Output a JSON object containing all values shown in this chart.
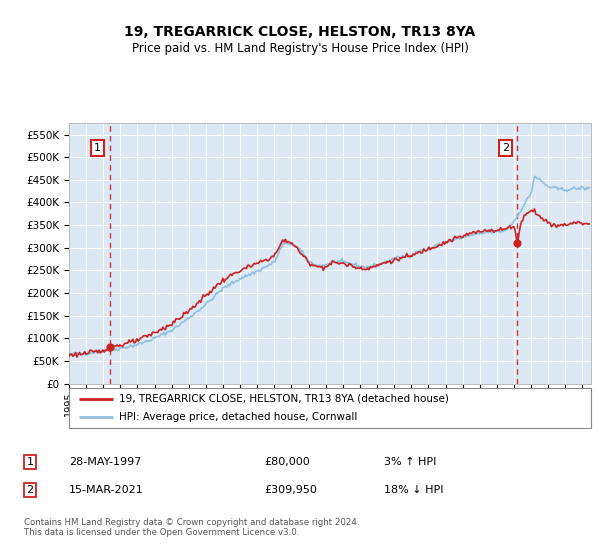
{
  "title": "19, TREGARRICK CLOSE, HELSTON, TR13 8YA",
  "subtitle": "Price paid vs. HM Land Registry's House Price Index (HPI)",
  "background_color": "#ffffff",
  "plot_bg_color": "#dce9f5",
  "ylabel_ticks": [
    "£0",
    "£50K",
    "£100K",
    "£150K",
    "£200K",
    "£250K",
    "£300K",
    "£350K",
    "£400K",
    "£450K",
    "£500K",
    "£550K"
  ],
  "ytick_values": [
    0,
    50000,
    100000,
    150000,
    200000,
    250000,
    300000,
    350000,
    400000,
    450000,
    500000,
    550000
  ],
  "ylim": [
    0,
    575000
  ],
  "xlim_start": 1995.0,
  "xlim_end": 2025.5,
  "transaction1_x": 1997.38,
  "transaction1_y": 80000,
  "transaction2_x": 2021.2,
  "transaction2_y": 309950,
  "legend_line1": "19, TREGARRICK CLOSE, HELSTON, TR13 8YA (detached house)",
  "legend_line2": "HPI: Average price, detached house, Cornwall",
  "table_row1_label": "1",
  "table_row1_date": "28-MAY-1997",
  "table_row1_price": "£80,000",
  "table_row1_hpi": "3% ↑ HPI",
  "table_row2_label": "2",
  "table_row2_date": "15-MAR-2021",
  "table_row2_price": "£309,950",
  "table_row2_hpi": "18% ↓ HPI",
  "footnote": "Contains HM Land Registry data © Crown copyright and database right 2024.\nThis data is licensed under the Open Government Licence v3.0.",
  "hpi_color": "#90bfe0",
  "price_color": "#cc2222",
  "dashed_color": "#cc2222",
  "grid_color": "#ffffff"
}
